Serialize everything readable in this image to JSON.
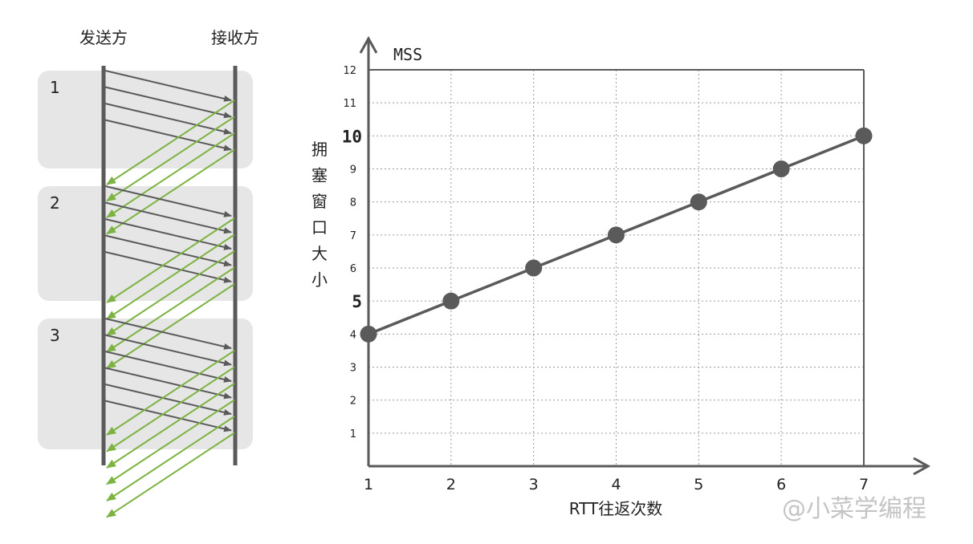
{
  "sequence": {
    "sender_label": "发送方",
    "receiver_label": "接收方",
    "rounds": [
      {
        "label": "1",
        "segments": 4,
        "acks": 4
      },
      {
        "label": "2",
        "segments": 5,
        "acks": 5
      },
      {
        "label": "3",
        "segments": 6,
        "acks": 6
      }
    ],
    "colors": {
      "data_arrow": "#5a5a5a",
      "ack_arrow": "#7cb342",
      "round_bg": "#e6e6e6",
      "timeline": "#5a5a5a"
    }
  },
  "chart_data": {
    "type": "line",
    "x": [
      1,
      2,
      3,
      4,
      5,
      6,
      7
    ],
    "series": [
      {
        "values": [
          4,
          5,
          6,
          7,
          8,
          9,
          10
        ]
      }
    ],
    "x_ticks": [
      "1",
      "2",
      "3",
      "4",
      "5",
      "6",
      "7"
    ],
    "y_ticks": [
      "1",
      "2",
      "3",
      "4",
      "5",
      "6",
      "7",
      "8",
      "9",
      "10",
      "11",
      "12"
    ],
    "bold_y_ticks": [
      "5",
      "10"
    ],
    "xlabel": "RTT往返次数",
    "ylabel": "拥塞窗口大小",
    "yunit": "MSS",
    "xlim": [
      1,
      7
    ],
    "ylim": [
      0,
      12
    ],
    "grid": true,
    "line_color": "#5a5a5a"
  },
  "watermark": "@小菜学编程"
}
